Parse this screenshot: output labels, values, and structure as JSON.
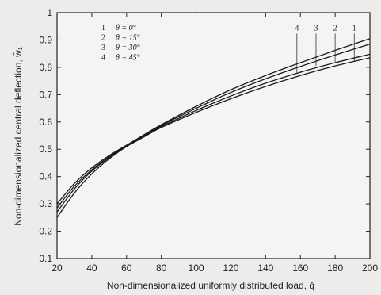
{
  "chart_data": {
    "type": "line",
    "xlabel": "Non-dimensionalized uniformly distributed load, q̄",
    "ylabel": "Non-dimensionalized central deflection, w̄₁",
    "xlim": [
      20,
      200
    ],
    "ylim": [
      0.1,
      1.0
    ],
    "x_ticks": [
      20,
      40,
      60,
      80,
      100,
      120,
      140,
      160,
      180,
      200
    ],
    "y_ticks": [
      0.1,
      0.2,
      0.3,
      0.4,
      0.5,
      0.6,
      0.7,
      0.8,
      0.9,
      1.0
    ],
    "x_tick_labels": [
      "20",
      "40",
      "60",
      "80",
      "100",
      "120",
      "140",
      "160",
      "180",
      "200"
    ],
    "y_tick_labels": [
      "0.1",
      "0.2",
      "0.3",
      "0.4",
      "0.5",
      "0.6",
      "0.7",
      "0.8",
      "0.9",
      "1"
    ],
    "grid": false,
    "legend_position": "top-left",
    "legend": [
      {
        "id": "1",
        "text": "θ = 0°"
      },
      {
        "id": "2",
        "text": "θ = 15°"
      },
      {
        "id": "3",
        "text": "θ = 30°"
      },
      {
        "id": "4",
        "text": "θ = 45°"
      }
    ],
    "x": [
      20,
      30,
      40,
      50,
      60,
      70,
      80,
      100,
      120,
      140,
      160,
      180,
      200
    ],
    "series": [
      {
        "id": "1",
        "values": [
          0.25,
          0.34,
          0.41,
          0.465,
          0.51,
          0.545,
          0.58,
          0.635,
          0.685,
          0.73,
          0.77,
          0.805,
          0.835
        ]
      },
      {
        "id": "2",
        "values": [
          0.27,
          0.355,
          0.42,
          0.47,
          0.512,
          0.548,
          0.583,
          0.642,
          0.695,
          0.742,
          0.782,
          0.817,
          0.848
        ]
      },
      {
        "id": "3",
        "values": [
          0.285,
          0.365,
          0.425,
          0.473,
          0.513,
          0.55,
          0.587,
          0.65,
          0.708,
          0.758,
          0.803,
          0.845,
          0.885
        ]
      },
      {
        "id": "4",
        "values": [
          0.3,
          0.375,
          0.432,
          0.477,
          0.515,
          0.553,
          0.59,
          0.657,
          0.718,
          0.77,
          0.817,
          0.862,
          0.905
        ]
      }
    ],
    "callouts": [
      {
        "label": "4",
        "x": 158,
        "y_text": 0.935,
        "y_end": 0.78
      },
      {
        "label": "3",
        "x": 169,
        "y_text": 0.935,
        "y_end": 0.805
      },
      {
        "label": "2",
        "x": 180,
        "y_text": 0.935,
        "y_end": 0.82
      },
      {
        "label": "1",
        "x": 191,
        "y_text": 0.935,
        "y_end": 0.82
      }
    ]
  }
}
